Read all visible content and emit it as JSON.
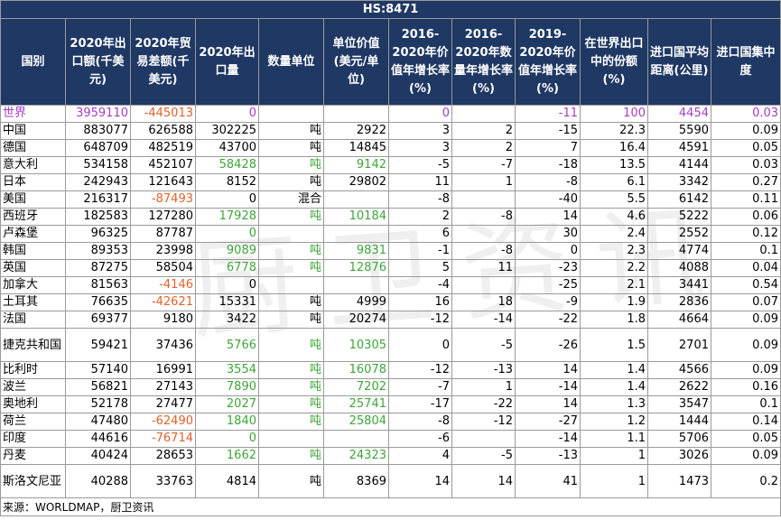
{
  "title": "HS:8471",
  "headers": [
    "国别",
    "2020年出口额(千美元)",
    "2020年贸易差额(千美元)",
    "2020年出口量",
    "数量单位",
    "单位价值(美元/单位)",
    "2016-2020年价值年增长率(%)",
    "2016-2020年数量年增长率(%)",
    "2019-2020年价值年增长率(%)",
    "在世界出口中的份额(%)",
    "进口国平均距离(公里)",
    "进口国集中度"
  ],
  "rows": [
    [
      "世界",
      "3959110",
      "-445013",
      "0",
      "",
      "",
      "0",
      "",
      "-11",
      "100",
      "4454",
      "0.03"
    ],
    [
      "中国",
      "883077",
      "626588",
      "302225",
      "吨",
      "2922",
      "3",
      "2",
      "-15",
      "22.3",
      "5590",
      "0.09"
    ],
    [
      "德国",
      "648709",
      "482519",
      "43700",
      "吨",
      "14845",
      "3",
      "2",
      "7",
      "16.4",
      "4591",
      "0.05"
    ],
    [
      "意大利",
      "534158",
      "452107",
      "58428",
      "吨",
      "9142",
      "-5",
      "-7",
      "-18",
      "13.5",
      "4144",
      "0.03"
    ],
    [
      "日本",
      "242943",
      "121643",
      "8152",
      "吨",
      "29802",
      "11",
      "1",
      "-8",
      "6.1",
      "3342",
      "0.27"
    ],
    [
      "美国",
      "216317",
      "-87493",
      "0",
      "混合",
      "",
      "-8",
      "",
      "-40",
      "5.5",
      "6142",
      "0.11"
    ],
    [
      "西班牙",
      "182583",
      "127280",
      "17928",
      "吨",
      "10184",
      "2",
      "-8",
      "14",
      "4.6",
      "5222",
      "0.06"
    ],
    [
      "卢森堡",
      "96325",
      "87787",
      "0",
      "",
      "",
      "6",
      "",
      "30",
      "2.4",
      "2552",
      "0.12"
    ],
    [
      "韩国",
      "89353",
      "23998",
      "9089",
      "吨",
      "9831",
      "-1",
      "-8",
      "0",
      "2.3",
      "4774",
      "0.1"
    ],
    [
      "英国",
      "87275",
      "58504",
      "6778",
      "吨",
      "12876",
      "5",
      "11",
      "-23",
      "2.2",
      "4088",
      "0.04"
    ],
    [
      "加拿大",
      "81563",
      "-4146",
      "0",
      "",
      "",
      "-4",
      "",
      "-25",
      "2.1",
      "3441",
      "0.54"
    ],
    [
      "土耳其",
      "76635",
      "-42621",
      "15331",
      "吨",
      "4999",
      "16",
      "18",
      "-9",
      "1.9",
      "2836",
      "0.07"
    ],
    [
      "法国",
      "69377",
      "9180",
      "3422",
      "吨",
      "20274",
      "-12",
      "-14",
      "-22",
      "1.8",
      "4664",
      "0.09"
    ],
    [
      "捷克共和国",
      "59421",
      "37436",
      "5766",
      "吨",
      "10305",
      "0",
      "-5",
      "-26",
      "1.5",
      "2701",
      "0.09"
    ],
    [
      "比利时",
      "57140",
      "16991",
      "3554",
      "吨",
      "16078",
      "-12",
      "-13",
      "14",
      "1.4",
      "4566",
      "0.09"
    ],
    [
      "波兰",
      "56821",
      "27143",
      "7890",
      "吨",
      "7202",
      "-7",
      "1",
      "-14",
      "1.4",
      "2622",
      "0.16"
    ],
    [
      "奥地利",
      "52178",
      "27477",
      "2027",
      "吨",
      "25741",
      "-17",
      "-22",
      "14",
      "1.3",
      "3547",
      "0.1"
    ],
    [
      "荷兰",
      "47480",
      "-62490",
      "1840",
      "吨",
      "25804",
      "-8",
      "-12",
      "-27",
      "1.2",
      "1444",
      "0.14"
    ],
    [
      "印度",
      "44616",
      "-76714",
      "0",
      "",
      "",
      "-6",
      "",
      "-14",
      "1.1",
      "5706",
      "0.05"
    ],
    [
      "丹麦",
      "40424",
      "28653",
      "1662",
      "吨",
      "24323",
      "4",
      "-5",
      "-13",
      "1",
      "3026",
      "0.09"
    ],
    [
      "斯洛文尼亚",
      "40288",
      "33763",
      "4814",
      "吨",
      "8369",
      "14",
      "14",
      "41",
      "1",
      "1473",
      "0.2"
    ]
  ],
  "source": "来源：WORLDMAP，厨卫资讯",
  "watermark": "厨卫资讯",
  "colors": {
    "header_bg": "#1f3864",
    "world_text": "#a63cc2",
    "negative_text": "#e0622a",
    "green_text": "#3ea538"
  }
}
